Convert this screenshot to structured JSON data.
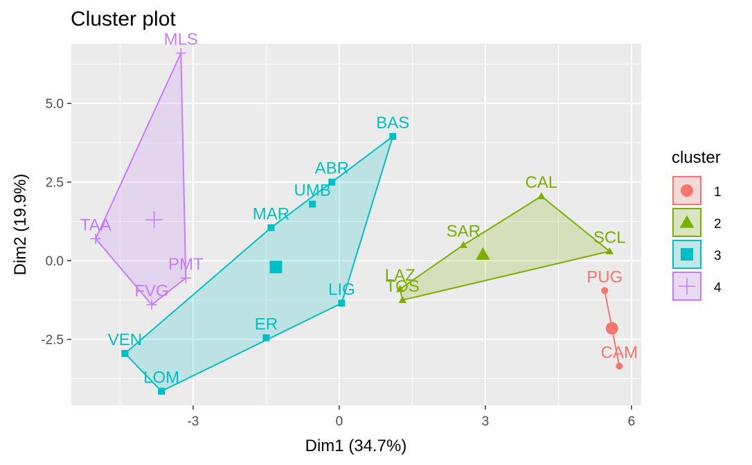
{
  "chart_data": {
    "type": "scatter",
    "title": "Cluster plot",
    "xlabel": "Dim1 (34.7%)",
    "ylabel": "Dim2 (19.9%)",
    "xlim": [
      -5.5,
      6.2
    ],
    "ylim": [
      -4.6,
      6.9
    ],
    "x_ticks": [
      {
        "value": -3,
        "label": "-3"
      },
      {
        "value": 0,
        "label": "0"
      },
      {
        "value": 3,
        "label": "3"
      },
      {
        "value": 6,
        "label": "6"
      }
    ],
    "y_ticks": [
      {
        "value": -2.5,
        "label": "-2.5"
      },
      {
        "value": 0,
        "label": "0.0"
      },
      {
        "value": 2.5,
        "label": "2.5"
      },
      {
        "value": 5,
        "label": "5.0"
      }
    ],
    "grid": true,
    "legend": {
      "title": "cluster",
      "position": "right"
    },
    "series": [
      {
        "name": "1",
        "color": "#F8766D",
        "shape": "circle",
        "centroid": [
          5.6,
          -2.15
        ],
        "hull": [
          "PUG",
          "CAM"
        ],
        "points": [
          {
            "label": "PUG",
            "x": 5.45,
            "y": -0.95
          },
          {
            "label": "CAM",
            "x": 5.75,
            "y": -3.35
          }
        ]
      },
      {
        "name": "2",
        "color": "#7CAE00",
        "shape": "triangle",
        "centroid": [
          2.95,
          0.2
        ],
        "hull": [
          "CAL",
          "SCL",
          "TOS",
          "LAZ",
          "SAR"
        ],
        "points": [
          {
            "label": "SAR",
            "x": 2.55,
            "y": 0.5
          },
          {
            "label": "CAL",
            "x": 4.15,
            "y": 2.05
          },
          {
            "label": "SCL",
            "x": 5.55,
            "y": 0.3
          },
          {
            "label": "LAZ",
            "x": 1.25,
            "y": -0.9
          },
          {
            "label": "TOS",
            "x": 1.3,
            "y": -1.25
          }
        ]
      },
      {
        "name": "3",
        "color": "#00BFC4",
        "shape": "square",
        "centroid": [
          -1.3,
          -0.2
        ],
        "hull": [
          "BAS",
          "LIG",
          "LOM",
          "VEN",
          "MAR",
          "ABR"
        ],
        "points": [
          {
            "label": "BAS",
            "x": 1.1,
            "y": 3.95
          },
          {
            "label": "ABR",
            "x": -0.15,
            "y": 2.5
          },
          {
            "label": "UMB",
            "x": -0.55,
            "y": 1.8
          },
          {
            "label": "MAR",
            "x": -1.4,
            "y": 1.05
          },
          {
            "label": "LIG",
            "x": 0.05,
            "y": -1.35
          },
          {
            "label": "ER",
            "x": -1.5,
            "y": -2.45
          },
          {
            "label": "VEN",
            "x": -4.4,
            "y": -2.95
          },
          {
            "label": "LOM",
            "x": -3.65,
            "y": -4.15
          }
        ]
      },
      {
        "name": "4",
        "color": "#C77CFF",
        "shape": "cross",
        "centroid": [
          -3.8,
          1.3
        ],
        "hull": [
          "MLS",
          "PMT",
          "FVG",
          "TAA"
        ],
        "points": [
          {
            "label": "MLS",
            "x": -3.25,
            "y": 6.6
          },
          {
            "label": "TAA",
            "x": -5.0,
            "y": 0.7
          },
          {
            "label": "PMT",
            "x": -3.15,
            "y": -0.55
          },
          {
            "label": "FVG",
            "x": -3.85,
            "y": -1.4
          }
        ]
      }
    ]
  }
}
